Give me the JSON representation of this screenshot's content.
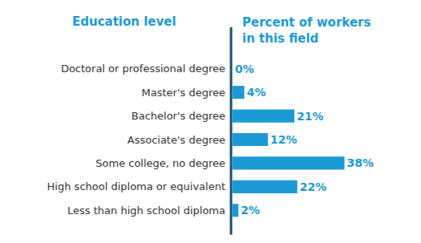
{
  "chart_data": {
    "type": "bar",
    "orientation": "horizontal",
    "ylabel": "Education level",
    "xlabel": [
      "Percent of workers",
      "in this field"
    ],
    "categories": [
      "Doctoral or professional degree",
      "Master's degree",
      "Bachelor's degree",
      "Associate's degree",
      "Some college, no degree",
      "High school diploma or equivalent",
      "Less than high school diploma"
    ],
    "values": [
      0,
      4,
      21,
      12,
      38,
      22,
      2
    ],
    "value_labels": [
      "0%",
      "4%",
      "21%",
      "12%",
      "38%",
      "22%",
      "2%"
    ],
    "data_labels": true,
    "color": "#1b9ad6",
    "xlim": [
      0,
      64
    ],
    "xticks": [],
    "tick_labels": "y",
    "grid": false
  }
}
